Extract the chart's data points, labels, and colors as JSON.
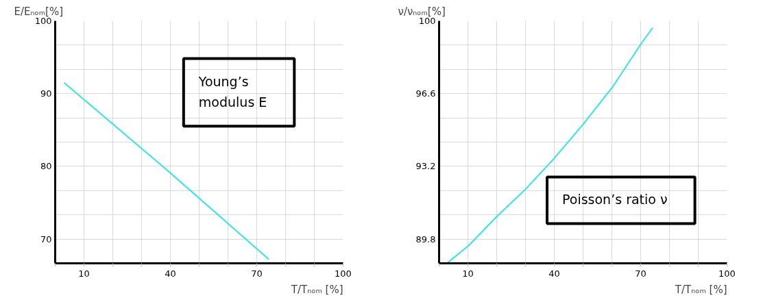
{
  "chart_data": [
    {
      "type": "line",
      "xlabel": "T/Tₙₒₘ [%]",
      "ylabel": "E/Eₙₒₘ[%]",
      "annotations": [
        "Young’s modulus E"
      ],
      "series": [
        {
          "color": "#2ee6e6",
          "x": [
            3.1,
            40,
            74.2
          ],
          "values": [
            91.5,
            79.1,
            67.2
          ]
        }
      ],
      "xlim": [
        0,
        100
      ],
      "ylim": [
        66.67,
        100
      ],
      "xticks": [
        {
          "value": 0,
          "label": null
        },
        10,
        {
          "value": 20,
          "label": null
        },
        {
          "value": 30,
          "label": null
        },
        40,
        {
          "value": 50,
          "label": null
        },
        {
          "value": 60,
          "label": null
        },
        70,
        {
          "value": 80,
          "label": null
        },
        {
          "value": 90,
          "label": null
        },
        100
      ],
      "yticks": [
        {
          "value": 66.67,
          "label": null
        },
        70,
        {
          "value": 73.33,
          "label": null
        },
        {
          "value": 76.67,
          "label": null
        },
        80,
        {
          "value": 83.33,
          "label": null
        },
        {
          "value": 86.67,
          "label": null
        },
        90,
        {
          "value": 93.33,
          "label": null
        },
        {
          "value": 96.67,
          "label": null
        },
        100
      ],
      "grid": true,
      "marker": "none",
      "line_style": "solid"
    },
    {
      "type": "line",
      "xlabel": "T/Tₙₒₘ [%]",
      "ylabel": "ν/νₙₒₘ[%]",
      "annotations": [
        "Poisson’s ratio ν"
      ],
      "series": [
        {
          "color": "#2ee6e6",
          "x": [
            2.9,
            10.3,
            19.9,
            30,
            40,
            50,
            60.1,
            70.1,
            74.2
          ],
          "values": [
            88.69,
            89.5,
            90.84,
            92.13,
            93.58,
            95.16,
            96.88,
            98.92,
            99.68
          ]
        }
      ],
      "xlim": [
        0,
        100
      ],
      "ylim": [
        88.67,
        100
      ],
      "xticks": [
        {
          "value": 0,
          "label": null
        },
        10,
        {
          "value": 20,
          "label": null
        },
        {
          "value": 30,
          "label": null
        },
        40,
        {
          "value": 50,
          "label": null
        },
        {
          "value": 60,
          "label": null
        },
        70,
        {
          "value": 80,
          "label": null
        },
        {
          "value": 90,
          "label": null
        },
        100
      ],
      "yticks": [
        {
          "value": 88.67,
          "label": null
        },
        89.8,
        {
          "value": 90.93,
          "label": null
        },
        {
          "value": 92.07,
          "label": null
        },
        93.2,
        {
          "value": 94.33,
          "label": null
        },
        {
          "value": 95.47,
          "label": null
        },
        96.6,
        {
          "value": 97.73,
          "label": null
        },
        {
          "value": 98.87,
          "label": null
        },
        100
      ],
      "grid": true,
      "marker": "none",
      "line_style": "solid"
    }
  ]
}
